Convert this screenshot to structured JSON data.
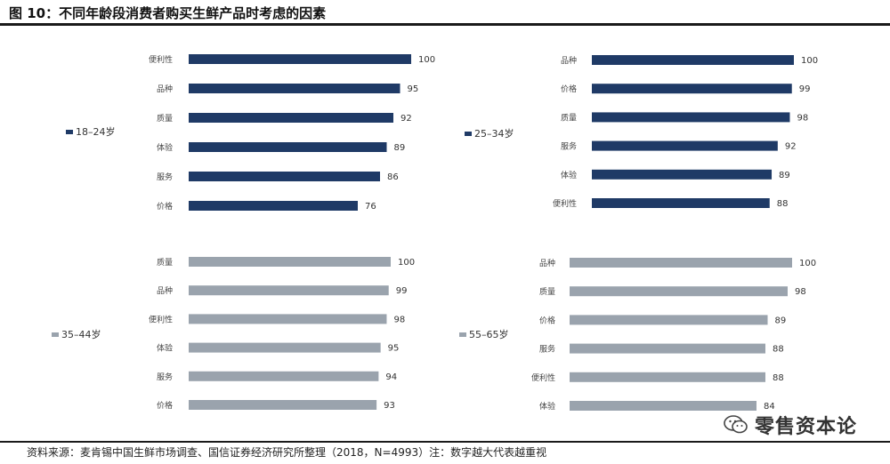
{
  "title": "图 10：不同年龄段消费者购买生鲜产品时考虑的因素",
  "source": "资料来源：麦肯锡中国生鲜市场调查、国信证券经济研究所整理（2018，N=4993）注：数字越大代表越重视",
  "watermark": "零售资本论",
  "colors": {
    "dark": "#1f3a66",
    "light": "#9aa3ad"
  },
  "chart_data": [
    {
      "type": "bar",
      "legend": "18–24岁",
      "categories": [
        "便利性",
        "品种",
        "质量",
        "体验",
        "服务",
        "价格"
      ],
      "values": [
        100,
        95,
        92,
        89,
        86,
        76
      ],
      "xlim": [
        0,
        100
      ],
      "color": "#1f3a66"
    },
    {
      "type": "bar",
      "legend": "25–34岁",
      "categories": [
        "品种",
        "价格",
        "质量",
        "服务",
        "体验",
        "便利性"
      ],
      "values": [
        100,
        99,
        98,
        92,
        89,
        88
      ],
      "xlim": [
        0,
        100
      ],
      "color": "#1f3a66"
    },
    {
      "type": "bar",
      "legend": "35–44岁",
      "categories": [
        "质量",
        "品种",
        "便利性",
        "体验",
        "服务",
        "价格"
      ],
      "values": [
        100,
        99,
        98,
        95,
        94,
        93
      ],
      "xlim": [
        0,
        100
      ],
      "color": "#9aa3ad"
    },
    {
      "type": "bar",
      "legend": "55–65岁",
      "categories": [
        "品种",
        "质量",
        "价格",
        "服务",
        "便利性",
        "体验"
      ],
      "values": [
        100,
        98,
        89,
        88,
        88,
        84
      ],
      "xlim": [
        0,
        100
      ],
      "color": "#9aa3ad"
    }
  ]
}
